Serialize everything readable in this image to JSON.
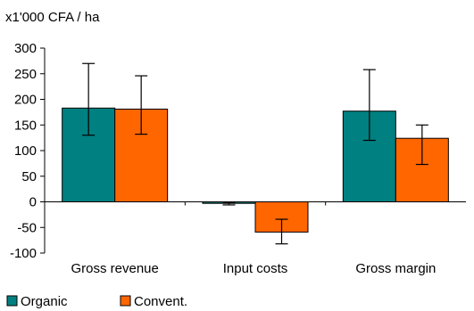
{
  "chart_data": {
    "type": "bar",
    "title": "",
    "ylabel": "x1'000 CFA / ha",
    "xlabel": "",
    "categories": [
      "Gross revenue",
      "Input costs",
      "Gross margin"
    ],
    "series": [
      {
        "name": "Organic",
        "color": "#008080",
        "values": [
          183,
          -3,
          177
        ],
        "error_low": [
          130,
          -6,
          120
        ],
        "error_high": [
          270,
          -2,
          258
        ]
      },
      {
        "name": "Convent.",
        "color": "#FF6600",
        "values": [
          181,
          -59,
          124
        ],
        "error_low": [
          132,
          -82,
          73
        ],
        "error_high": [
          246,
          -34,
          150
        ]
      }
    ],
    "ylim": [
      -100,
      300
    ],
    "yticks": [
      -100,
      -50,
      0,
      50,
      100,
      150,
      200,
      250,
      300
    ],
    "grid": false,
    "legend_position": "bottom-left"
  }
}
